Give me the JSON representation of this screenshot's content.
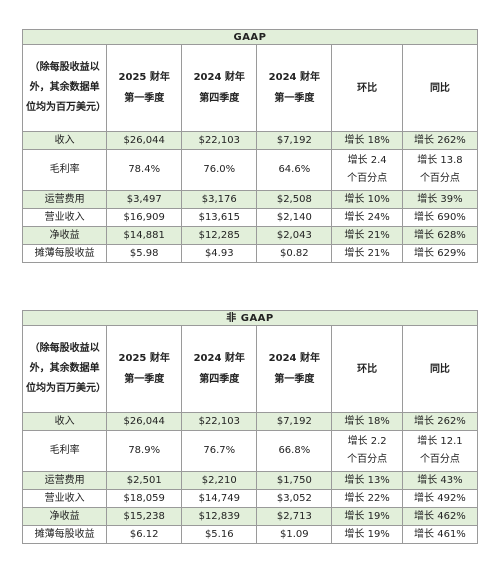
{
  "tables": [
    {
      "title": "GAAP",
      "unit_note": "（除每股收益以外，其余数据单位均为百万美元）",
      "columns": [
        "2025 财年\n第一季度",
        "2024 财年\n第四季度",
        "2024 财年\n第一季度",
        "环比",
        "同比"
      ],
      "rows": [
        {
          "label": "收入",
          "values": [
            "$26,044",
            "$22,103",
            "$7,192",
            "增长 18%",
            "增长 262%"
          ]
        },
        {
          "label": "毛利率",
          "values": [
            "78.4%",
            "76.0%",
            "64.6%",
            "增长 2.4\n个百分点",
            "增长 13.8\n个百分点"
          ]
        },
        {
          "label": "运营费用",
          "values": [
            "$3,497",
            "$3,176",
            "$2,508",
            "增长 10%",
            "增长 39%"
          ]
        },
        {
          "label": "营业收入",
          "values": [
            "$16,909",
            "$13,615",
            "$2,140",
            "增长 24%",
            "增长 690%"
          ]
        },
        {
          "label": "净收益",
          "values": [
            "$14,881",
            "$12,285",
            "$2,043",
            "增长 21%",
            "增长 628%"
          ]
        },
        {
          "label": "摊薄每股收益",
          "values": [
            "$5.98",
            "$4.93",
            "$0.82",
            "增长 21%",
            "增长 629%"
          ]
        }
      ]
    },
    {
      "title": "非 GAAP",
      "unit_note": "（除每股收益以外，其余数据单位均为百万美元）",
      "columns": [
        "2025 财年\n第一季度",
        "2024 财年\n第四季度",
        "2024 财年\n第一季度",
        "环比",
        "同比"
      ],
      "rows": [
        {
          "label": "收入",
          "values": [
            "$26,044",
            "$22,103",
            "$7,192",
            "增长 18%",
            "增长 262%"
          ]
        },
        {
          "label": "毛利率",
          "values": [
            "78.9%",
            "76.7%",
            "66.8%",
            "增长 2.2\n个百分点",
            "增长 12.1\n个百分点"
          ]
        },
        {
          "label": "运营费用",
          "values": [
            "$2,501",
            "$2,210",
            "$1,750",
            "增长 13%",
            "增长 43%"
          ]
        },
        {
          "label": "营业收入",
          "values": [
            "$18,059",
            "$14,749",
            "$3,052",
            "增长 22%",
            "增长 492%"
          ]
        },
        {
          "label": "净收益",
          "values": [
            "$15,238",
            "$12,839",
            "$2,713",
            "增长 19%",
            "增长 462%"
          ]
        },
        {
          "label": "摊薄每股收益",
          "values": [
            "$6.12",
            "$5.16",
            "$1.09",
            "增长 19%",
            "增长 461%"
          ]
        }
      ]
    }
  ]
}
